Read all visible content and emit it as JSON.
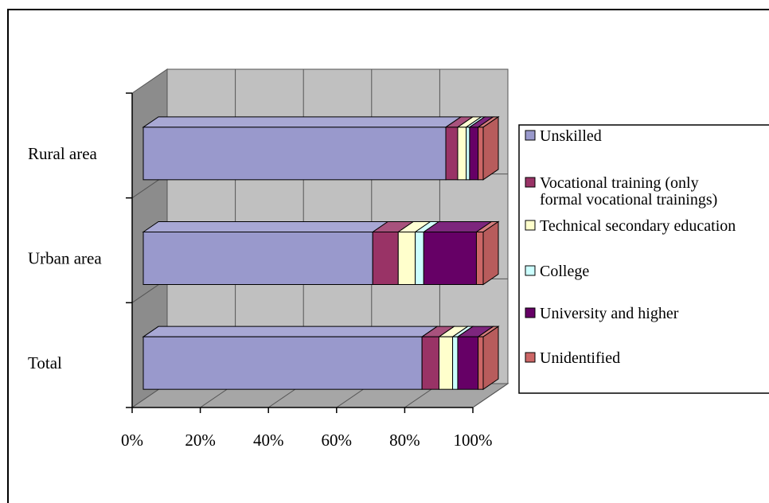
{
  "chart_data": {
    "type": "bar",
    "orientation": "horizontal",
    "stacking": "percent",
    "style": "3d",
    "title": "",
    "categories": [
      "Rural area",
      "Urban area",
      "Total"
    ],
    "series": [
      {
        "name": "Unskilled",
        "color": "#9999cc",
        "values": [
          89.0,
          67.5,
          82.0
        ]
      },
      {
        "name": "Vocational training (only formal vocational trainings)",
        "color": "#993366",
        "values": [
          3.5,
          7.5,
          5.0
        ]
      },
      {
        "name": "Technical secondary education",
        "color": "#ffffcc",
        "values": [
          2.5,
          5.0,
          4.0
        ]
      },
      {
        "name": "College",
        "color": "#ccffff",
        "values": [
          1.0,
          2.5,
          1.5
        ]
      },
      {
        "name": "University and higher",
        "color": "#660066",
        "values": [
          2.5,
          15.5,
          6.0
        ]
      },
      {
        "name": "Unidentified",
        "color": "#cc6666",
        "values": [
          1.5,
          2.0,
          1.5
        ]
      }
    ],
    "xaxis": {
      "ticks": [
        "0%",
        "20%",
        "40%",
        "60%",
        "80%",
        "100%"
      ],
      "range": [
        0,
        100
      ],
      "grid": true
    },
    "legend": {
      "placement": "right"
    }
  }
}
